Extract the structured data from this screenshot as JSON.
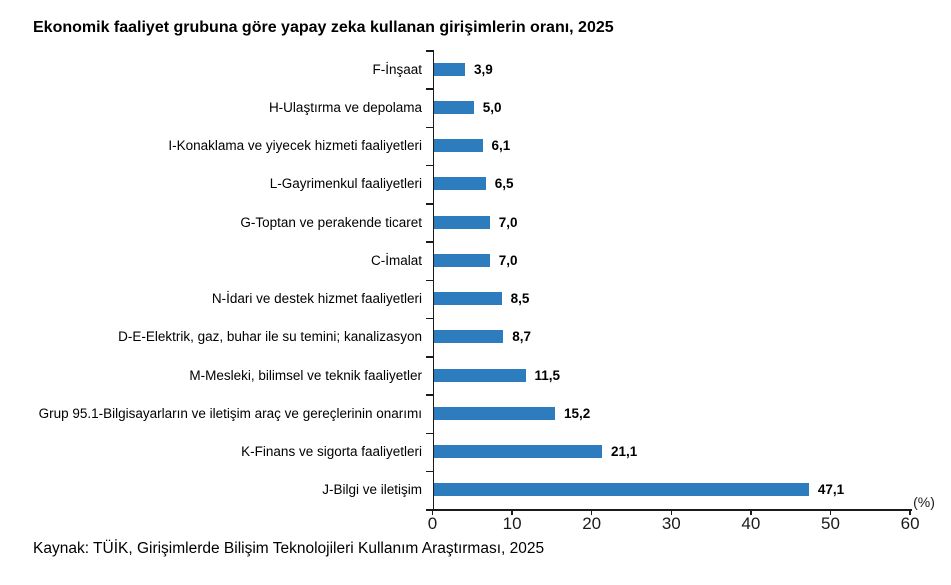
{
  "title": "Ekonomik faaliyet grubuna göre yapay zeka kullanan girişimlerin oranı, 2025",
  "source": "Kaynak: TÜİK, Girişimlerde Bilişim Teknolojileri Kullanım Araştırması, 2025",
  "chart_data": {
    "type": "bar",
    "orientation": "horizontal",
    "title": "Ekonomik faaliyet grubuna göre yapay zeka kullanan girişimlerin oranı, 2025",
    "xlabel": "(%)",
    "ylabel": "",
    "xlim": [
      0,
      60
    ],
    "x_ticks": [
      0,
      10,
      20,
      30,
      40,
      50,
      60
    ],
    "grid": false,
    "legend": false,
    "bar_color": "#2d7dbe",
    "axis_color": "#1a1a1a",
    "categories": [
      "F-İnşaat",
      "H-Ulaştırma ve depolama",
      "I-Konaklama ve yiyecek hizmeti faaliyetleri",
      "L-Gayrimenkul faaliyetleri",
      "G-Toptan ve perakende ticaret",
      "C-İmalat",
      "N-İdari ve destek hizmet faaliyetleri",
      "D-E-Elektrik, gaz, buhar ile su temini; kanalizasyon",
      "M-Mesleki, bilimsel ve teknik faaliyetler",
      "Grup 95.1-Bilgisayarların ve iletişim araç ve gereçlerinin onarımı",
      "K-Finans ve sigorta faaliyetleri",
      "J-Bilgi ve iletişim"
    ],
    "values": [
      3.9,
      5.0,
      6.1,
      6.5,
      7.0,
      7.0,
      8.5,
      8.7,
      11.5,
      15.2,
      21.1,
      47.1
    ],
    "value_labels": [
      "3,9",
      "5,0",
      "6,1",
      "6,5",
      "7,0",
      "7,0",
      "8,5",
      "8,7",
      "11,5",
      "15,2",
      "21,1",
      "47,1"
    ]
  }
}
